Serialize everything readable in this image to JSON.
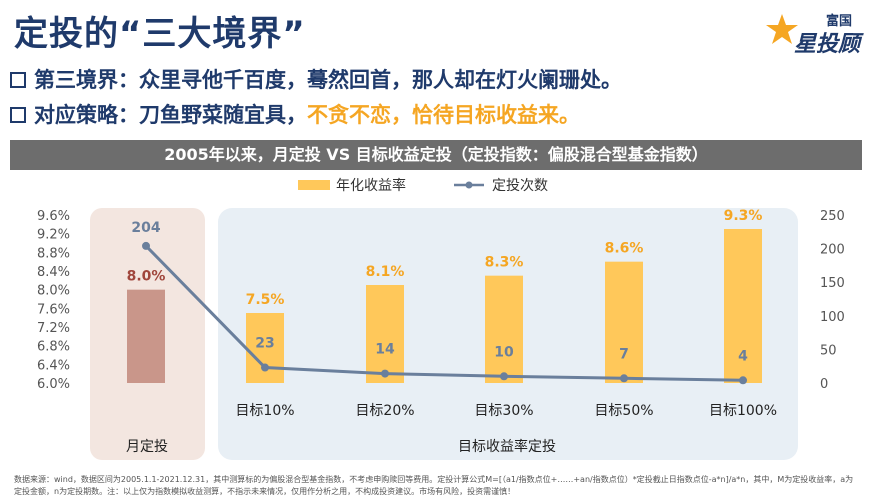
{
  "header": {
    "title": "定投的“三大境界”",
    "logo_top": "富国",
    "logo_main": "星投顾"
  },
  "lines": [
    {
      "prefix": "第三境界：",
      "text": "众里寻他千百度，蓦然回首，那人却在灯火阑珊处。",
      "highlight": ""
    },
    {
      "prefix": "对应策略：",
      "text": "刀鱼野菜随宜具，",
      "highlight": "不贪不恋，恰待目标收益来。"
    }
  ],
  "chart_data": {
    "type": "bar+line",
    "title": "2005年以来，月定投 VS 目标收益定投（定投指数：偏股混合型基金指数）",
    "categories": [
      "",
      "目标10%",
      "目标20%",
      "目标30%",
      "目标50%",
      "目标100%"
    ],
    "groups": [
      {
        "label": "月定投",
        "span": [
          0,
          0
        ]
      },
      {
        "label": "目标收益率定投",
        "span": [
          1,
          5
        ]
      }
    ],
    "series": [
      {
        "name": "年化收益率",
        "kind": "bar",
        "axis": "left",
        "values": [
          8.0,
          7.5,
          8.1,
          8.3,
          8.6,
          9.3
        ],
        "labels": [
          "8.0%",
          "7.5%",
          "8.1%",
          "8.3%",
          "8.6%",
          "9.3%"
        ]
      },
      {
        "name": "定投次数",
        "kind": "line",
        "axis": "right",
        "values": [
          204,
          23,
          14,
          10,
          7,
          4
        ],
        "labels": [
          "204",
          "23",
          "14",
          "10",
          "7",
          "4"
        ]
      }
    ],
    "y_left": {
      "min": 6.0,
      "max": 9.6,
      "ticks": [
        "9.6%",
        "9.2%",
        "8.8%",
        "8.4%",
        "8.0%",
        "7.6%",
        "7.2%",
        "6.8%",
        "6.4%",
        "6.0%"
      ]
    },
    "y_right": {
      "min": 0,
      "max": 250,
      "ticks": [
        "250",
        "200",
        "150",
        "100",
        "50",
        "0"
      ]
    },
    "legend_position": "top-center",
    "colors": {
      "bar": "#ffc85a",
      "bar_highlight": "#c9968a",
      "line": "#6a7f9c",
      "bar_label_gold": "#f5a623",
      "bar_label_red": "#a0463c",
      "panel_left": "#f3e6e0",
      "panel_right": "#e8eff5"
    }
  },
  "footnote": "数据来源：wind，数据区间为2005.1.1-2021.12.31，其中测算标的为偏股混合型基金指数，不考虑申购赎回等费用。定投计算公式M=[（a1/指数点位+……+an/指数点位）*定投截止日指数点位-a*n]/a*n，其中，M为定投收益率，a为定投金额，n为定投期数。注：以上仅为指数模拟收益测算，不指示未来情况，仅用作分析之用，不构成投资建议。市场有风险，投资需谨慎！"
}
